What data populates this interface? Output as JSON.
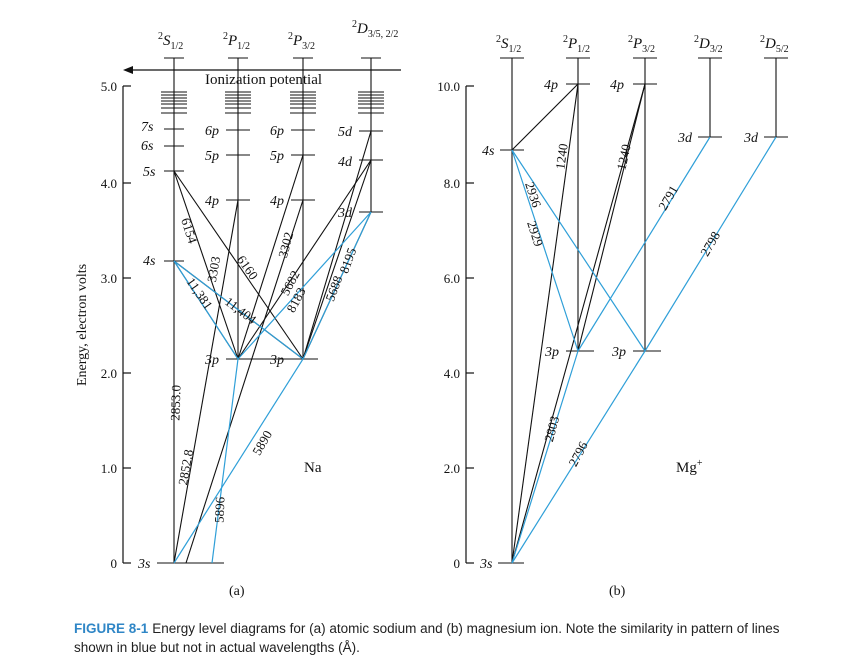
{
  "diagram_a": {
    "ylabel": "Energy, electron volts",
    "yticks": [
      "5.0",
      "4.0",
      "3.0",
      "2.0",
      "1.0",
      "0"
    ],
    "ionization": "Ionization potential",
    "element": "Na",
    "panel_label": "(a)",
    "columns": [
      {
        "head": "S",
        "sub": "1/2"
      },
      {
        "head": "P",
        "sub": "1/2"
      },
      {
        "head": "P",
        "sub": "3/2"
      },
      {
        "head": "D",
        "sub": "3/5, 2/2"
      }
    ],
    "levels": {
      "s_3s": "3s",
      "s_4s": "4s",
      "s_5s": "5s",
      "s_6s": "6s",
      "s_7s": "7s",
      "p1_3p": "3p",
      "p1_4p": "4p",
      "p1_5p": "5p",
      "p1_6p": "6p",
      "p3_3p": "3p",
      "p3_4p": "4p",
      "p3_5p": "5p",
      "p3_6p": "6p",
      "d_3d": "3d",
      "d_4d": "4d",
      "d_5d": "5d"
    },
    "wavelengths": {
      "w6154": "6154",
      "w11381": "11,381",
      "w3303": "3303",
      "w6160": "6160",
      "w11404": "11,404",
      "w3302": "3302",
      "w5682": "5682",
      "w8183": "8183",
      "w5688": "5688",
      "w8195": "8195",
      "w2853": "2853.0",
      "w2852": "2852.8",
      "w5896": "5896",
      "w5890": "5890"
    }
  },
  "diagram_b": {
    "yticks": [
      "10.0",
      "8.0",
      "6.0",
      "4.0",
      "2.0",
      "0"
    ],
    "element": "Mg",
    "element_sup": "+",
    "panel_label": "(b)",
    "columns": [
      {
        "head": "S",
        "sub": "1/2"
      },
      {
        "head": "P",
        "sub": "1/2"
      },
      {
        "head": "P",
        "sub": "3/2"
      },
      {
        "head": "D",
        "sub": "3/2"
      },
      {
        "head": "D",
        "sub": "5/2"
      }
    ],
    "levels": {
      "s_3s": "3s",
      "s_4s": "4s",
      "p1_3p": "3p",
      "p1_4p": "4p",
      "p3_3p": "3p",
      "p3_4p": "4p",
      "d32_3d": "3d",
      "d52_3d": "3d"
    },
    "wavelengths": {
      "w2936": "2936",
      "w2929": "2929",
      "w1240a": "1240",
      "w1240b": "1240",
      "w2791": "2791",
      "w2798": "2798",
      "w2803": "2803",
      "w2796": "2796"
    }
  },
  "caption": {
    "label": "FIGURE 8-1",
    "text": "Energy level diagrams for (a) atomic sodium and (b) magnesium ion. Note the similarity in pattern of lines shown in blue but not in actual wavelengths (Å)."
  },
  "colors": {
    "black": "#111111",
    "blue": "#2f9fd8",
    "caption_label": "#2f86c6"
  }
}
